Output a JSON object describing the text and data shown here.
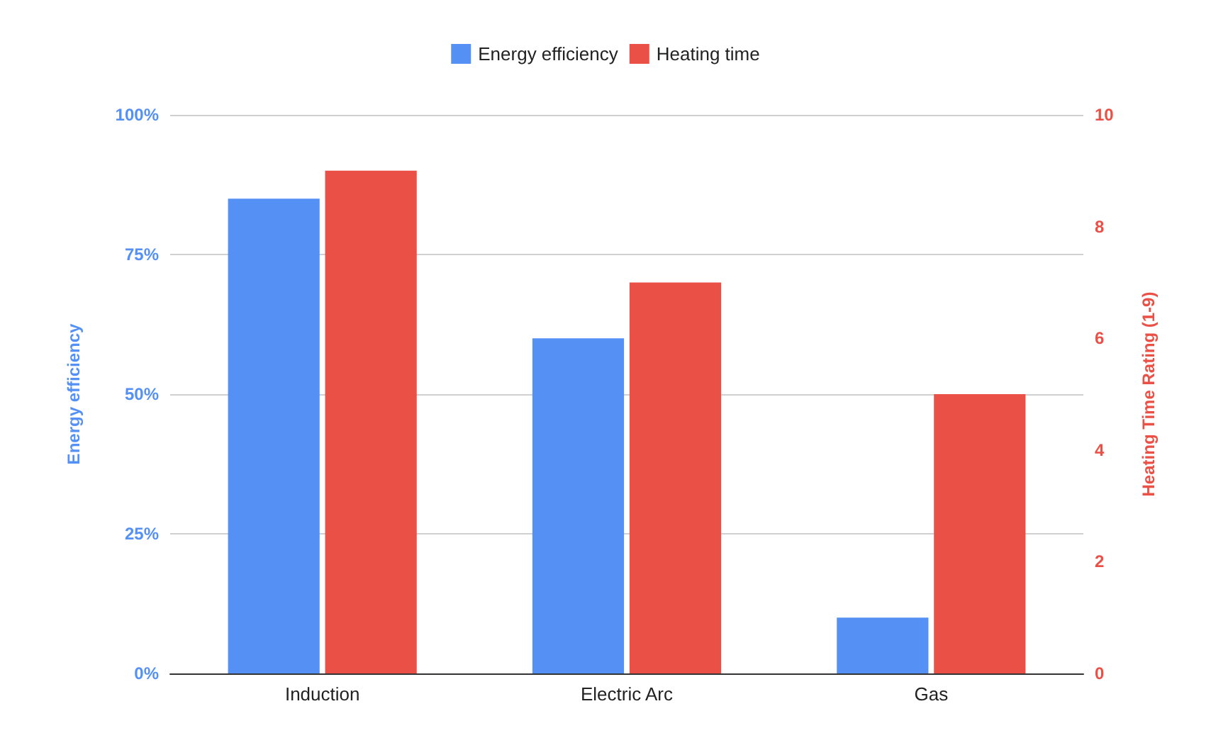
{
  "chart_data": {
    "type": "bar",
    "categories": [
      "Induction",
      "Electric Arc",
      "Gas"
    ],
    "series": [
      {
        "name": "Energy efficiency",
        "color": "#5591f5",
        "values": [
          85,
          60,
          10
        ]
      },
      {
        "name": "Heating time",
        "color": "#ea5045",
        "values": [
          9,
          7,
          5
        ],
        "axis": "y2"
      }
    ],
    "ylabel": "Energy efficiency",
    "y2label": "Heating Time Rating (1-9)",
    "ylim": [
      0,
      100
    ],
    "yticks": [
      {
        "value": 0,
        "label": "0%"
      },
      {
        "value": 25,
        "label": "25%"
      },
      {
        "value": 50,
        "label": "50%"
      },
      {
        "value": 75,
        "label": "75%"
      },
      {
        "value": 100,
        "label": "100%"
      }
    ],
    "y2lim": [
      0,
      10
    ],
    "y2ticks": [
      0,
      2,
      4,
      6,
      8,
      10
    ],
    "grid": "y",
    "legend": "top"
  }
}
